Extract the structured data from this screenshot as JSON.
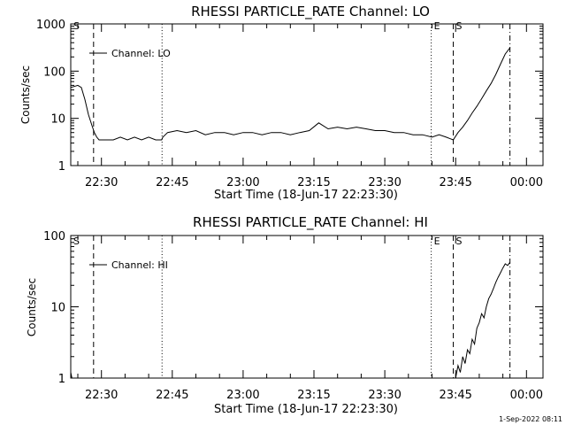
{
  "footer_timestamp": "1-Sep-2022 08:11",
  "chart_data": [
    {
      "type": "line",
      "title": "RHESSI PARTICLE_RATE Channel: LO",
      "xlabel": "Start Time (18-Jun-17 22:23:30)",
      "ylabel": "Counts/sec",
      "yscale": "log",
      "ylim": [
        1,
        1000
      ],
      "xlim_minutes_after_start": [
        0,
        100
      ],
      "x_tick_labels": [
        "22:30",
        "22:45",
        "23:00",
        "23:15",
        "23:30",
        "23:45",
        "00:00"
      ],
      "y_tick_labels": [
        "1",
        "10",
        "100",
        "1000"
      ],
      "legend": {
        "placement": "top-left",
        "entries": [
          "Channel: LO"
        ]
      },
      "markers": [
        {
          "label": "S",
          "time": "22:23:30",
          "style": "dashed"
        },
        {
          "label": "",
          "time": "22:28:20",
          "style": "dashed"
        },
        {
          "label": "",
          "time": "22:42:50",
          "style": "dotted"
        },
        {
          "label": "E",
          "time": "23:39:50",
          "style": "dotted"
        },
        {
          "label": "S",
          "time": "23:44:30",
          "style": "dashed"
        },
        {
          "label": "",
          "time": "23:56:30",
          "style": "dash-dot"
        }
      ],
      "series": [
        {
          "name": "Channel: LO",
          "x": [
            "22:23:30",
            "22:25:00",
            "22:25:45",
            "22:26:30",
            "22:27:15",
            "22:28:00",
            "22:28:30",
            "22:29:00",
            "22:29:30",
            "22:31:00",
            "22:32:30",
            "22:34:00",
            "22:35:30",
            "22:37:00",
            "22:38:30",
            "22:40:00",
            "22:41:30",
            "22:42:45",
            "22:43:00",
            "22:44:00",
            "22:46:00",
            "22:48:00",
            "22:50:00",
            "22:52:00",
            "22:54:00",
            "22:56:00",
            "22:58:00",
            "23:00:00",
            "23:02:00",
            "23:04:00",
            "23:06:00",
            "23:08:00",
            "23:10:00",
            "23:12:00",
            "23:14:00",
            "23:16:00",
            "23:18:00",
            "23:20:00",
            "23:22:00",
            "23:24:00",
            "23:26:00",
            "23:28:00",
            "23:30:00",
            "23:32:00",
            "23:34:00",
            "23:36:00",
            "23:38:00",
            "23:40:00",
            "23:41:30",
            "23:43:00",
            "23:44:30",
            "23:45:30",
            "23:46:30",
            "23:47:30",
            "23:48:30",
            "23:49:30",
            "23:50:30",
            "23:51:30",
            "23:52:30",
            "23:53:30",
            "23:54:30",
            "23:55:30",
            "23:56:30"
          ],
          "values": [
            45,
            50,
            45,
            25,
            12,
            7,
            5,
            4,
            3.5,
            3.5,
            3.5,
            4,
            3.5,
            4,
            3.5,
            4,
            3.5,
            3.5,
            4,
            5,
            5.5,
            5,
            5.5,
            4.5,
            5,
            5,
            4.5,
            5,
            5,
            4.5,
            5,
            5,
            4.5,
            5,
            5.5,
            8,
            6,
            6.5,
            6,
            6.5,
            6,
            5.5,
            5.5,
            5,
            5,
            4.5,
            4.5,
            4,
            4.5,
            4,
            3.5,
            5,
            6.5,
            9,
            13,
            18,
            26,
            38,
            55,
            85,
            140,
            230,
            310
          ]
        }
      ]
    },
    {
      "type": "line",
      "title": "RHESSI PARTICLE_RATE Channel: HI",
      "xlabel": "Start Time (18-Jun-17 22:23:30)",
      "ylabel": "Counts/sec",
      "yscale": "log",
      "ylim": [
        1,
        100
      ],
      "xlim_minutes_after_start": [
        0,
        100
      ],
      "x_tick_labels": [
        "22:30",
        "22:45",
        "23:00",
        "23:15",
        "23:30",
        "23:45",
        "00:00"
      ],
      "y_tick_labels": [
        "1",
        "10",
        "100"
      ],
      "legend": {
        "placement": "top-left",
        "entries": [
          "Channel: HI"
        ]
      },
      "markers": [
        {
          "label": "S",
          "time": "22:23:30",
          "style": "dashed"
        },
        {
          "label": "",
          "time": "22:28:20",
          "style": "dashed"
        },
        {
          "label": "",
          "time": "22:42:50",
          "style": "dotted"
        },
        {
          "label": "E",
          "time": "23:39:50",
          "style": "dotted"
        },
        {
          "label": "S",
          "time": "23:44:30",
          "style": "dashed"
        },
        {
          "label": "",
          "time": "23:56:30",
          "style": "dash-dot"
        }
      ],
      "series": [
        {
          "name": "Channel: HI",
          "x": [
            "22:23:30",
            "22:23:45",
            "23:45:00",
            "23:45:30",
            "23:46:00",
            "23:46:30",
            "23:47:00",
            "23:47:30",
            "23:48:00",
            "23:48:30",
            "23:49:00",
            "23:49:30",
            "23:50:00",
            "23:50:30",
            "23:51:00",
            "23:51:30",
            "23:52:00",
            "23:52:30",
            "23:53:00",
            "23:53:30",
            "23:54:00",
            "23:54:30",
            "23:55:00",
            "23:55:30",
            "23:56:00",
            "23:56:30"
          ],
          "values": [
            1.2,
            1,
            1,
            1.5,
            1.2,
            2,
            1.6,
            2.5,
            2.2,
            3.5,
            3,
            5,
            6,
            8,
            7,
            10,
            13,
            15,
            18,
            22,
            26,
            30,
            35,
            40,
            38,
            42
          ]
        }
      ]
    }
  ]
}
